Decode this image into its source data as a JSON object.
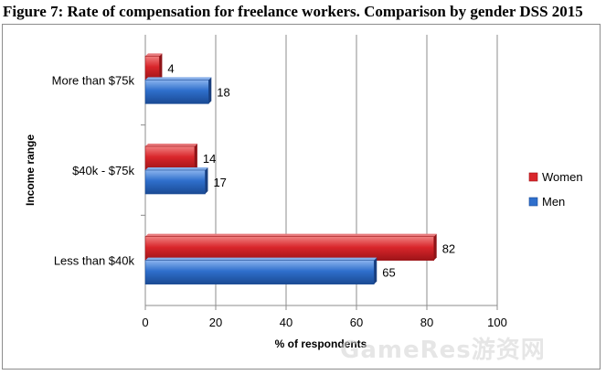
{
  "chart_data": {
    "type": "bar",
    "orientation": "horizontal",
    "title": "Figure 7: Rate of compensation for freelance workers. Comparison by gender DSS 2015",
    "categories": [
      "More than $75k",
      "$40k - $75k",
      "Less than $40k"
    ],
    "series": [
      {
        "name": "Women",
        "values": [
          4,
          14,
          82
        ],
        "color": "#d9262b"
      },
      {
        "name": "Men",
        "values": [
          18,
          17,
          65
        ],
        "color": "#2f6fcc"
      }
    ],
    "xlabel": "% of respondents",
    "ylabel": "Income range",
    "xlim": [
      0,
      100
    ],
    "xticks": [
      0,
      20,
      40,
      60,
      80,
      100
    ],
    "grid": true,
    "legend": "right"
  },
  "watermark": "GameRes游资网"
}
